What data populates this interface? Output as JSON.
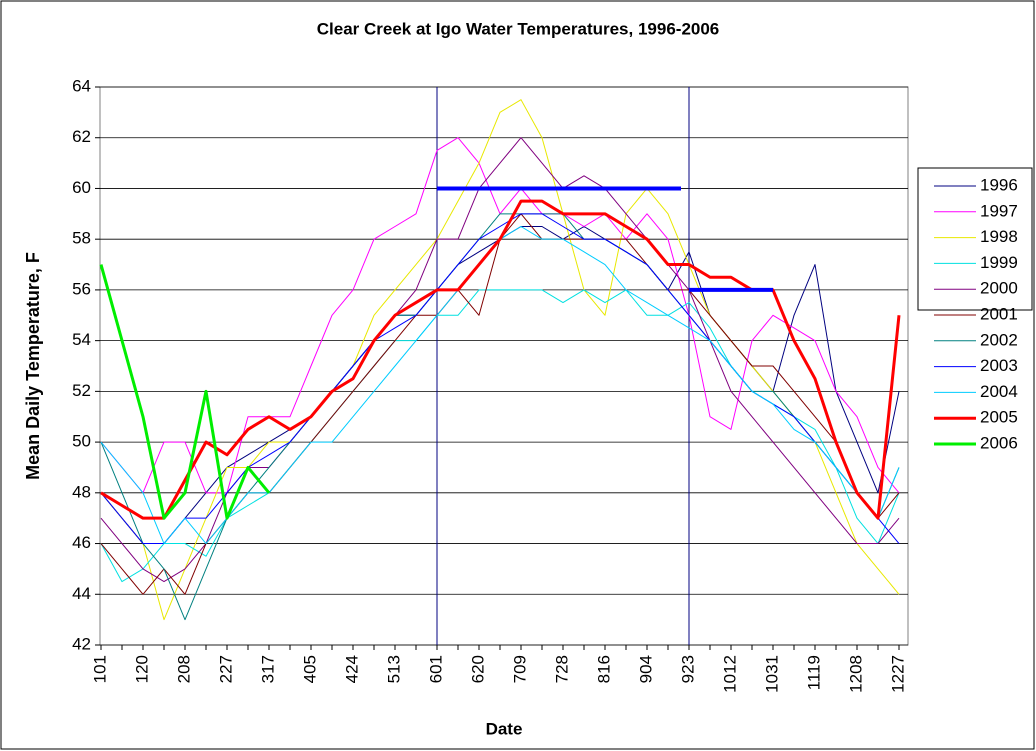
{
  "chart_data": {
    "type": "line",
    "title": "Clear Creek at Igo Water Temperatures, 1996-2006",
    "x_label": "Date",
    "y_label": "Mean Daily Temperature, F",
    "categories": [
      "101",
      null,
      "120",
      null,
      "208",
      null,
      "227",
      null,
      "317",
      null,
      "405",
      null,
      "424",
      null,
      "513",
      null,
      "601",
      null,
      "620",
      null,
      "709",
      null,
      "728",
      null,
      "816",
      null,
      "904",
      null,
      "923",
      null,
      "1012",
      null,
      "1031",
      null,
      "1119",
      null,
      "1208",
      null,
      "1227"
    ],
    "ylim": [
      42,
      64
    ],
    "yticks": [
      42,
      44,
      46,
      48,
      50,
      52,
      54,
      56,
      58,
      60,
      62,
      64
    ],
    "grid": true,
    "legend": "right",
    "series": [
      {
        "name": "1996",
        "color": "#000080",
        "line_width": 1,
        "values": [
          48,
          47,
          46,
          46,
          47,
          48,
          49,
          49.5,
          50,
          50.5,
          51,
          52,
          53,
          54,
          55,
          55,
          56,
          57,
          57.5,
          58,
          58.5,
          58.5,
          58,
          58.5,
          58,
          57.5,
          57,
          56,
          57.5,
          55,
          54,
          53,
          52,
          55,
          57,
          52,
          50,
          48,
          52
        ]
      },
      {
        "name": "1997",
        "color": "#ff00ff",
        "line_width": 1,
        "values": [
          50,
          49,
          48,
          50,
          50,
          48,
          48,
          51,
          51,
          51,
          53,
          55,
          56,
          58,
          58.5,
          59,
          61.5,
          62,
          61,
          59,
          60,
          59,
          59,
          58.5,
          59,
          58,
          59,
          58,
          55,
          51,
          50.5,
          54,
          55,
          54.5,
          54,
          52,
          51,
          49,
          48
        ]
      },
      {
        "name": "1998",
        "color": "#e8e800",
        "line_width": 1,
        "values": [
          48,
          47,
          46,
          43,
          45,
          47,
          49,
          49,
          50,
          50,
          51,
          52,
          53,
          55,
          56,
          57,
          58,
          59.5,
          61,
          63,
          63.5,
          62,
          59,
          56,
          55,
          59,
          60,
          59,
          57,
          55,
          54,
          53,
          52,
          51,
          50,
          48,
          46,
          45,
          44
        ]
      },
      {
        "name": "1999",
        "color": "#00e0e0",
        "line_width": 1,
        "values": [
          46,
          44.5,
          45,
          46,
          46,
          45.5,
          47,
          47.5,
          48,
          49,
          50,
          51,
          52,
          53,
          54,
          54,
          55,
          55,
          56,
          56,
          56,
          56,
          55.5,
          56,
          55.5,
          56,
          55,
          55,
          55.5,
          54.5,
          53,
          52,
          51.5,
          51,
          50.5,
          49,
          47,
          46,
          48
        ]
      },
      {
        "name": "2000",
        "color": "#800080",
        "line_width": 1,
        "values": [
          47,
          46,
          45,
          44.5,
          45,
          46,
          48,
          49,
          49,
          50,
          51,
          52,
          53,
          54,
          55,
          56,
          58,
          58,
          60,
          61,
          62,
          61,
          60,
          60.5,
          60,
          59,
          58,
          57,
          56,
          54,
          52,
          51,
          50,
          49,
          48,
          47,
          46,
          46,
          47
        ]
      },
      {
        "name": "2001",
        "color": "#800000",
        "line_width": 1,
        "values": [
          46,
          45,
          44,
          45,
          44,
          46,
          47,
          48,
          48,
          49,
          50,
          51,
          52,
          53,
          54,
          55,
          55,
          56,
          55,
          58,
          59,
          58,
          58,
          58,
          58,
          58,
          57,
          56,
          56,
          55,
          54,
          53,
          53,
          52,
          51,
          50,
          48,
          47,
          48
        ]
      },
      {
        "name": "2002",
        "color": "#008080",
        "line_width": 1,
        "values": [
          50,
          48,
          46,
          45,
          43,
          45,
          47,
          48,
          49,
          50,
          51,
          52,
          53,
          54,
          55,
          55,
          56,
          57,
          58,
          59,
          59,
          59,
          59,
          58,
          58,
          57.5,
          57,
          56,
          55,
          54,
          53,
          52,
          52,
          51,
          50,
          49,
          48,
          47,
          49
        ]
      },
      {
        "name": "2003",
        "color": "#0000ff",
        "line_width": 1,
        "values": [
          48,
          47,
          46,
          46,
          47,
          47,
          48,
          49,
          49.5,
          50,
          51,
          52,
          53,
          54,
          54.5,
          55,
          56,
          57,
          58,
          58.5,
          59,
          59,
          58.5,
          58,
          58,
          57.5,
          57,
          56,
          55,
          54,
          53,
          52,
          51.5,
          51,
          50,
          49,
          48,
          47,
          46
        ]
      },
      {
        "name": "2004",
        "color": "#00ccff",
        "line_width": 1,
        "values": [
          50,
          49,
          48,
          46,
          47,
          46,
          47,
          48,
          48,
          49,
          50,
          50,
          51,
          52,
          53,
          54,
          55,
          56,
          57,
          58,
          58.5,
          58,
          58,
          57.5,
          57,
          56,
          55.5,
          55,
          54.5,
          54,
          53,
          52,
          51.5,
          50.5,
          50,
          49,
          48,
          47,
          49
        ]
      },
      {
        "name": "2005",
        "color": "#ff0000",
        "line_width": 3,
        "values": [
          48,
          47.5,
          47,
          47,
          48.5,
          50,
          49.5,
          50.5,
          51,
          50.5,
          51,
          52,
          52.5,
          54,
          55,
          55.5,
          56,
          56,
          57,
          58,
          59.5,
          59.5,
          59,
          59,
          59,
          58.5,
          58,
          57,
          57,
          56.5,
          56.5,
          56,
          56,
          54,
          52.5,
          50,
          48,
          47,
          55
        ]
      },
      {
        "name": "2006",
        "color": "#00ee00",
        "line_width": 3,
        "values": [
          57,
          54,
          51,
          47,
          48,
          52,
          47,
          49,
          48,
          null,
          null,
          null,
          null,
          null,
          null,
          null,
          null,
          null,
          null,
          null,
          null,
          null,
          null,
          null,
          null,
          null,
          null,
          null,
          null,
          null,
          null,
          null,
          null,
          null,
          null,
          null,
          null,
          null,
          null
        ]
      }
    ],
    "reference_lines": {
      "color": "#0000ff",
      "vertical_color": "#000080",
      "horizontal": [
        {
          "y": 60,
          "from": "601",
          "to": "923"
        },
        {
          "y": 56,
          "from": "923",
          "to": "1031"
        }
      ],
      "vertical": [
        "601",
        "923"
      ]
    }
  }
}
